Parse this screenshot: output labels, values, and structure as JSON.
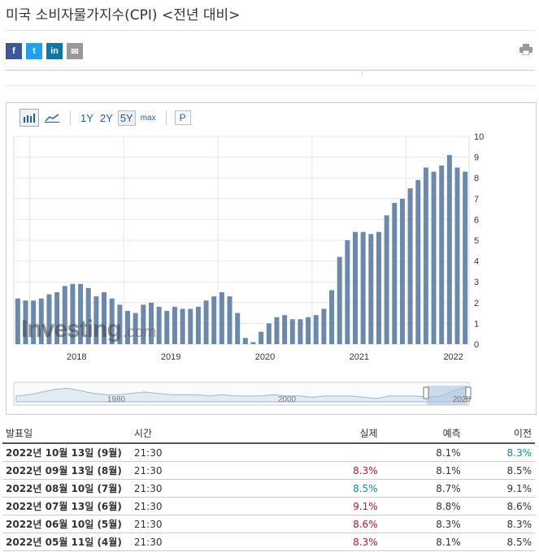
{
  "page": {
    "title": "미국 소비자물가지수(CPI) <전년 대비>"
  },
  "social": {
    "facebook": "f",
    "twitter": "t",
    "linkedin": "in",
    "email": "✉"
  },
  "toolbar": {
    "ranges": [
      "1Y",
      "2Y",
      "5Y",
      "max"
    ],
    "active_range": "5Y",
    "p_button": "P"
  },
  "watermark": {
    "brand": "Investing",
    "suffix": ".com"
  },
  "navigator": {
    "labels": [
      "1980",
      "2000",
      "2020"
    ]
  },
  "chart_data": {
    "type": "bar",
    "color": "#6a89ad",
    "start": "2017-11",
    "x_tick_labels": [
      "2018",
      "2019",
      "2020",
      "2021",
      "2022"
    ],
    "values": [
      2.2,
      2.1,
      2.1,
      2.2,
      2.4,
      2.5,
      2.8,
      2.9,
      2.9,
      2.7,
      2.3,
      2.5,
      2.2,
      1.9,
      1.6,
      1.5,
      1.9,
      2.0,
      1.8,
      1.6,
      1.8,
      1.7,
      1.7,
      1.8,
      2.1,
      2.3,
      2.5,
      2.3,
      1.5,
      0.3,
      0.1,
      0.6,
      1.0,
      1.3,
      1.4,
      1.2,
      1.2,
      1.3,
      1.4,
      1.7,
      2.6,
      4.2,
      5.0,
      5.4,
      5.4,
      5.3,
      5.4,
      6.2,
      6.8,
      7.0,
      7.5,
      7.9,
      8.5,
      8.3,
      8.6,
      9.1,
      8.5,
      8.3
    ],
    "y_ticks": [
      0,
      1,
      2,
      3,
      4,
      5,
      6,
      7,
      8,
      9,
      10
    ],
    "ylim": [
      0,
      10
    ],
    "grid": true
  },
  "table": {
    "headers": {
      "date": "발표일",
      "time": "시간",
      "actual": "실제",
      "forecast": "예측",
      "previous": "이전"
    },
    "rows": [
      {
        "date": "2022년 10월 13일 (9월)",
        "time": "21:30",
        "actual": "",
        "actual_color": "",
        "forecast": "8.1%",
        "previous": "8.3%",
        "previous_color": "teal"
      },
      {
        "date": "2022년 09월 13일 (8월)",
        "time": "21:30",
        "actual": "8.3%",
        "actual_color": "red",
        "forecast": "8.1%",
        "previous": "8.5%",
        "previous_color": ""
      },
      {
        "date": "2022년 08월 10일 (7월)",
        "time": "21:30",
        "actual": "8.5%",
        "actual_color": "teal",
        "forecast": "8.7%",
        "previous": "9.1%",
        "previous_color": ""
      },
      {
        "date": "2022년 07월 13일 (6월)",
        "time": "21:30",
        "actual": "9.1%",
        "actual_color": "red",
        "forecast": "8.8%",
        "previous": "8.6%",
        "previous_color": ""
      },
      {
        "date": "2022년 06월 10일 (5월)",
        "time": "21:30",
        "actual": "8.6%",
        "actual_color": "red",
        "forecast": "8.3%",
        "previous": "8.3%",
        "previous_color": ""
      },
      {
        "date": "2022년 05월 11일 (4월)",
        "time": "21:30",
        "actual": "8.3%",
        "actual_color": "red",
        "forecast": "8.1%",
        "previous": "8.5%",
        "previous_color": ""
      }
    ]
  }
}
